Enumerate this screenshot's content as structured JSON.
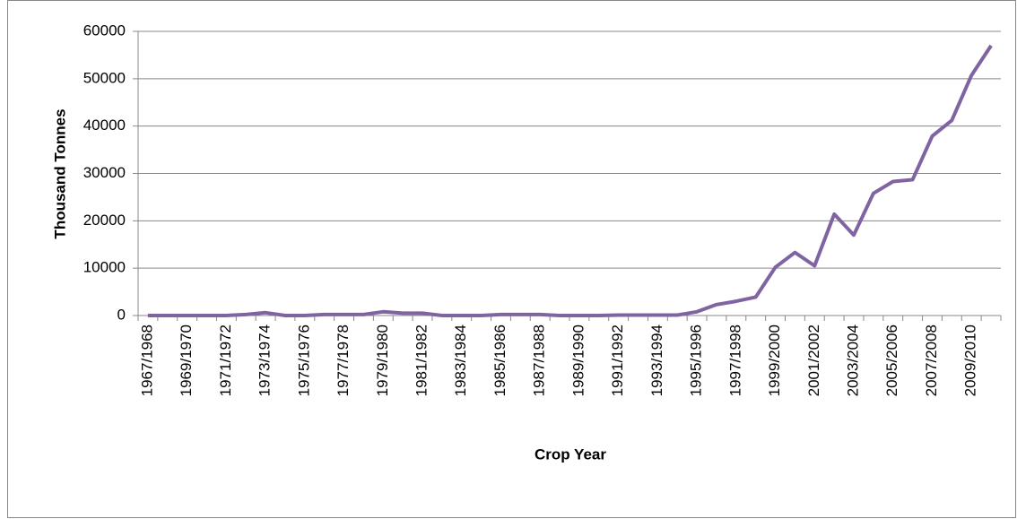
{
  "chart_data": {
    "type": "line",
    "y_label": "Thousand Tonnes",
    "x_label": "Crop Year",
    "categories": [
      "1967/1968",
      null,
      "1969/1970",
      null,
      "1971/1972",
      null,
      "1973/1974",
      null,
      "1975/1976",
      null,
      "1977/1978",
      null,
      "1979/1980",
      null,
      "1981/1982",
      null,
      "1983/1984",
      null,
      "1985/1986",
      null,
      "1987/1988",
      null,
      "1989/1990",
      null,
      "1991/1992",
      null,
      "1993/1994",
      null,
      "1995/1996",
      null,
      "1997/1998",
      null,
      "1999/2000",
      null,
      "2001/2002",
      null,
      "2003/2004",
      null,
      "2005/2006",
      null,
      "2007/2008",
      null,
      "2009/2010",
      null
    ],
    "values": [
      0,
      0,
      0,
      0,
      0,
      200,
      600,
      0,
      0,
      200,
      200,
      200,
      800,
      500,
      500,
      0,
      0,
      0,
      200,
      200,
      200,
      0,
      0,
      0,
      100,
      100,
      100,
      100,
      800,
      2300,
      3000,
      3900,
      10200,
      13300,
      10500,
      21400,
      17000,
      25800,
      28300,
      28700,
      37900,
      41200,
      50700,
      57000
    ],
    "color": "#8064a2",
    "ylim": [
      0,
      60000
    ],
    "yticks": [
      0,
      10000,
      20000,
      30000,
      40000,
      50000,
      60000
    ],
    "grid": true
  }
}
